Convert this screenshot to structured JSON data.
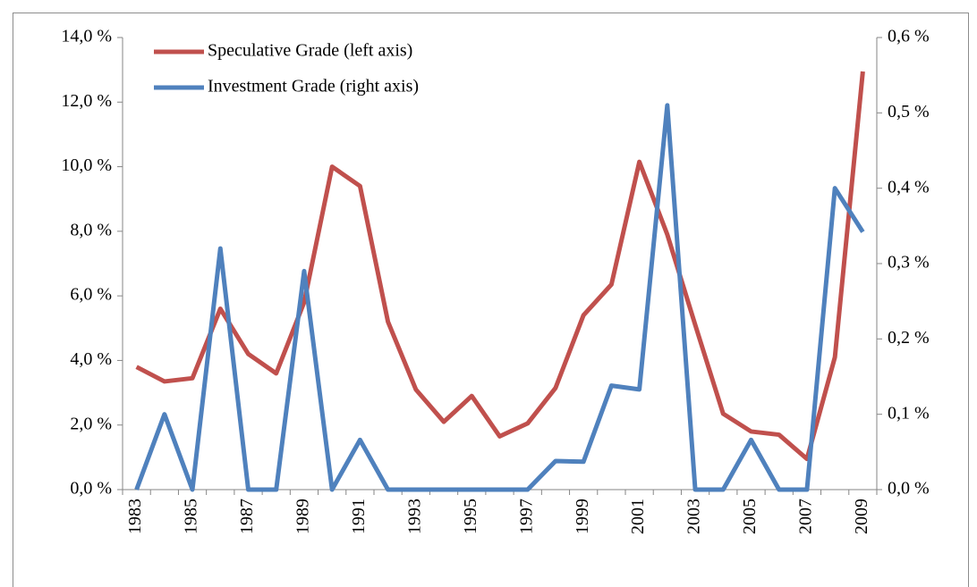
{
  "chart_data": {
    "type": "line",
    "categories": [
      "1983",
      null,
      "1985",
      null,
      "1987",
      null,
      "1989",
      null,
      "1991",
      null,
      "1993",
      null,
      "1995",
      null,
      "1997",
      null,
      "1999",
      null,
      "2001",
      null,
      "2003",
      null,
      "2005",
      null,
      "2007",
      null,
      "2009"
    ],
    "series": [
      {
        "name": "Speculative Grade (left axis)",
        "color": "#c0504d",
        "axis": "y",
        "values": [
          3.8,
          3.35,
          3.45,
          5.6,
          4.2,
          3.6,
          5.8,
          10.0,
          9.4,
          5.2,
          3.1,
          2.1,
          2.9,
          1.65,
          2.05,
          3.15,
          5.4,
          6.35,
          10.15,
          7.9,
          5.1,
          2.35,
          1.8,
          1.7,
          0.95,
          4.1,
          12.95
        ]
      },
      {
        "name": "Investment Grade (right axis)",
        "color": "#4f81bd",
        "axis": "y2",
        "values": [
          0,
          0.1,
          0,
          0.32,
          0,
          0,
          0.29,
          0,
          0.066,
          0,
          0,
          0,
          0,
          0,
          0,
          0.038,
          0.037,
          0.138,
          0.133,
          0.51,
          0,
          0,
          0.066,
          0,
          0,
          0.4,
          0.342
        ]
      }
    ],
    "ylim": [
      0,
      14
    ],
    "yticks": [
      {
        "value": 0,
        "label": "0,0 %"
      },
      {
        "value": 2,
        "label": "2,0 %"
      },
      {
        "value": 4,
        "label": "4,0 %"
      },
      {
        "value": 6,
        "label": "6,0 %"
      },
      {
        "value": 8,
        "label": "8,0 %"
      },
      {
        "value": 10,
        "label": "10,0 %"
      },
      {
        "value": 12,
        "label": "12,0 %"
      },
      {
        "value": 14,
        "label": "14,0 %"
      }
    ],
    "y2lim": [
      0,
      0.6
    ],
    "y2ticks": [
      {
        "value": 0,
        "label": "0,0 %"
      },
      {
        "value": 0.1,
        "label": "0,1 %"
      },
      {
        "value": 0.2,
        "label": "0,2 %"
      },
      {
        "value": 0.3,
        "label": "0,3 %"
      },
      {
        "value": 0.4,
        "label": "0,4 %"
      },
      {
        "value": 0.5,
        "label": "0,5 %"
      },
      {
        "value": 0.6,
        "label": "0,6 %"
      }
    ],
    "legend": "top-left",
    "grid": false
  }
}
